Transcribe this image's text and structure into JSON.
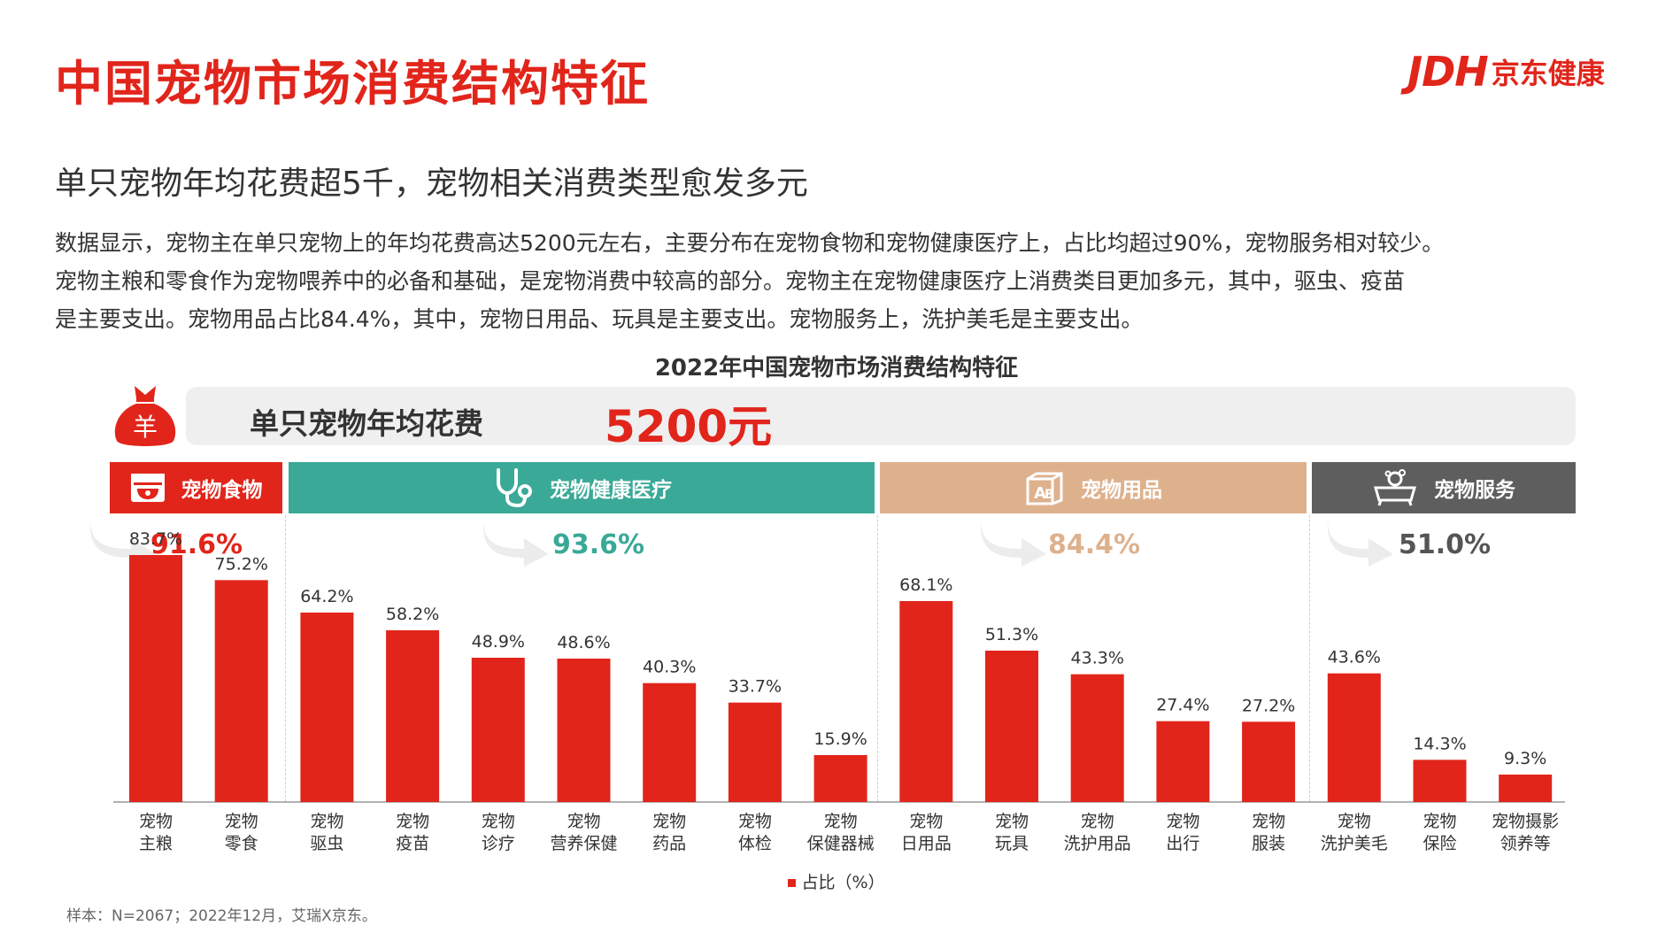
{
  "header": {
    "title": "中国宠物市场消费结构特征",
    "logo_mark": "JDH",
    "logo_text": "京东健康"
  },
  "subtitle": "单只宠物年均花费超5千，宠物相关消费类型愈发多元",
  "body_lines": [
    "数据显示，宠物主在单只宠物上的年均花费高达5200元左右，主要分布在宠物食物和宠物健康医疗上，占比均超过90%，宠物服务相对较少。",
    "宠物主粮和零食作为宠物喂养中的必备和基础，是宠物消费中较高的部分。宠物主在宠物健康医疗上消费类目更加多元，其中，驱虫、疫苗",
    "是主要支出。宠物用品占比84.4%，其中，宠物日用品、玩具是主要支出。宠物服务上，洗护美毛是主要支出。"
  ],
  "spend": {
    "label": "单只宠物年均花费",
    "value": "5200元",
    "bag_symbol": "羊"
  },
  "categories": [
    {
      "name": "宠物食物",
      "pct": "91.6%",
      "color": "#e1251b",
      "pct_color": "#e1251b",
      "icon": "pet-food-bowl-icon"
    },
    {
      "name": "宠物健康医疗",
      "pct": "93.6%",
      "color": "#3aa997",
      "pct_color": "#3aa997",
      "icon": "stethoscope-icon"
    },
    {
      "name": "宠物用品",
      "pct": "84.4%",
      "color": "#deb18d",
      "pct_color": "#deb18d",
      "icon": "ab-blocks-icon"
    },
    {
      "name": "宠物服务",
      "pct": "51.0%",
      "color": "#5e5e5e",
      "pct_color": "#555555",
      "icon": "pet-bath-icon"
    }
  ],
  "chart_data": {
    "type": "bar",
    "title": "2022年中国宠物市场消费结构特征",
    "categories": [
      "宠物\n主粮",
      "宠物\n零食",
      "宠物\n驱虫",
      "宠物\n疫苗",
      "宠物\n诊疗",
      "宠物\n营养保健",
      "宠物\n药品",
      "宠物\n体检",
      "宠物\n保健器械",
      "宠物\n日用品",
      "宠物\n玩具",
      "宠物\n洗护用品",
      "宠物\n出行",
      "宠物\n服装",
      "宠物\n洗护美毛",
      "宠物\n保险",
      "宠物摄影\n领养等"
    ],
    "series": [
      {
        "name": "占比（%）",
        "values": [
          83.7,
          75.2,
          64.2,
          58.2,
          48.9,
          48.6,
          40.3,
          33.7,
          15.9,
          68.1,
          51.3,
          43.3,
          27.4,
          27.2,
          43.6,
          14.3,
          9.3
        ]
      }
    ],
    "value_suffix": "%",
    "bar_color": "#e1251b",
    "groups": [
      {
        "name": "宠物食物",
        "count": 2
      },
      {
        "name": "宠物健康医疗",
        "count": 7
      },
      {
        "name": "宠物用品",
        "count": 5
      },
      {
        "name": "宠物服务",
        "count": 3
      }
    ],
    "ylim": [
      0,
      100
    ],
    "grid": false,
    "legend": "bottom-center"
  },
  "footnote": "样本：N=2067；2022年12月，艾瑞X京东。"
}
